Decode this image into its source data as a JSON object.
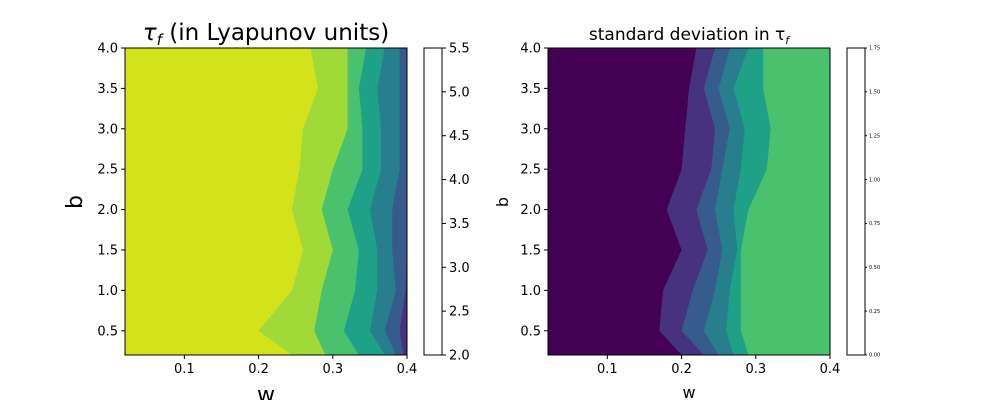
{
  "colors": [
    "#440154",
    "#46327e",
    "#365c8d",
    "#277f8e",
    "#1fa187",
    "#4ac16d",
    "#a0da39",
    "#d2e21b"
  ],
  "chart_data": [
    {
      "type": "heatmap",
      "subtype": "filled-contour",
      "title": "τf (in Lyapunov units)",
      "title_main": "τ",
      "title_sub": "f",
      "title_rest": " (in Lyapunov units)",
      "xlabel": "w",
      "ylabel": "b",
      "xlim": [
        0.02,
        0.4
      ],
      "ylim": [
        0.2,
        4.0
      ],
      "xticks": [
        "0.1",
        "0.2",
        "0.3",
        "0.4"
      ],
      "yticks": [
        "0.5",
        "1.0",
        "1.5",
        "2.0",
        "2.5",
        "3.0",
        "3.5",
        "4.0"
      ],
      "colorbar_levels": [
        "2.0",
        "2.5",
        "3.0",
        "3.5",
        "4.0",
        "4.5",
        "5.0",
        "5.5"
      ],
      "contour_boundaries_w": {
        "b_values": [
          0.2,
          0.5,
          1.0,
          1.5,
          2.0,
          2.5,
          3.0,
          3.5,
          4.0
        ],
        "level_5.0": [
          0.245,
          0.2,
          0.245,
          0.26,
          0.245,
          0.255,
          0.26,
          0.28,
          0.27
        ],
        "level_4.5": [
          0.29,
          0.275,
          0.285,
          0.3,
          0.285,
          0.3,
          0.32,
          0.32,
          0.32
        ],
        "level_4.0": [
          0.335,
          0.315,
          0.33,
          0.335,
          0.32,
          0.34,
          0.34,
          0.335,
          0.345
        ],
        "level_3.5": [
          0.37,
          0.35,
          0.36,
          0.36,
          0.35,
          0.365,
          0.365,
          0.36,
          0.37
        ],
        "level_3.0": [
          0.385,
          0.37,
          0.385,
          0.38,
          0.38,
          0.39,
          0.39,
          0.39,
          0.39
        ],
        "level_2.5": [
          0.395,
          0.39,
          0.398,
          0.4,
          0.4,
          0.4,
          0.4,
          0.4,
          0.4
        ]
      }
    },
    {
      "type": "heatmap",
      "subtype": "filled-contour",
      "title": "standard deviation in τf",
      "title_main": "standard deviation in τ",
      "title_sub": "f",
      "xlabel": "w",
      "ylabel": "b",
      "xlim": [
        0.02,
        0.4
      ],
      "ylim": [
        0.2,
        4.0
      ],
      "xticks": [
        "0.1",
        "0.2",
        "0.3",
        "0.4"
      ],
      "yticks": [
        "0.5",
        "1.0",
        "1.5",
        "2.0",
        "2.5",
        "3.0",
        "3.5",
        "4.0"
      ],
      "colorbar_levels": [
        "0.00",
        "0.25",
        "0.50",
        "0.75",
        "1.00",
        "1.25",
        "1.50",
        "1.75"
      ],
      "contour_boundaries_w": {
        "b_values": [
          0.2,
          0.5,
          1.0,
          1.5,
          2.0,
          2.5,
          3.0,
          3.5,
          4.0
        ],
        "level_0.25": [
          0.2,
          0.17,
          0.175,
          0.2,
          0.18,
          0.2,
          0.205,
          0.21,
          0.22
        ],
        "level_0.50": [
          0.23,
          0.2,
          0.215,
          0.235,
          0.22,
          0.24,
          0.245,
          0.23,
          0.245
        ],
        "level_0.75": [
          0.25,
          0.23,
          0.245,
          0.255,
          0.245,
          0.255,
          0.265,
          0.25,
          0.265
        ],
        "level_1.00": [
          0.27,
          0.26,
          0.265,
          0.275,
          0.27,
          0.28,
          0.285,
          0.27,
          0.29
        ],
        "level_1.25": [
          0.29,
          0.28,
          0.28,
          0.28,
          0.29,
          0.315,
          0.32,
          0.31,
          0.31
        ]
      }
    }
  ]
}
